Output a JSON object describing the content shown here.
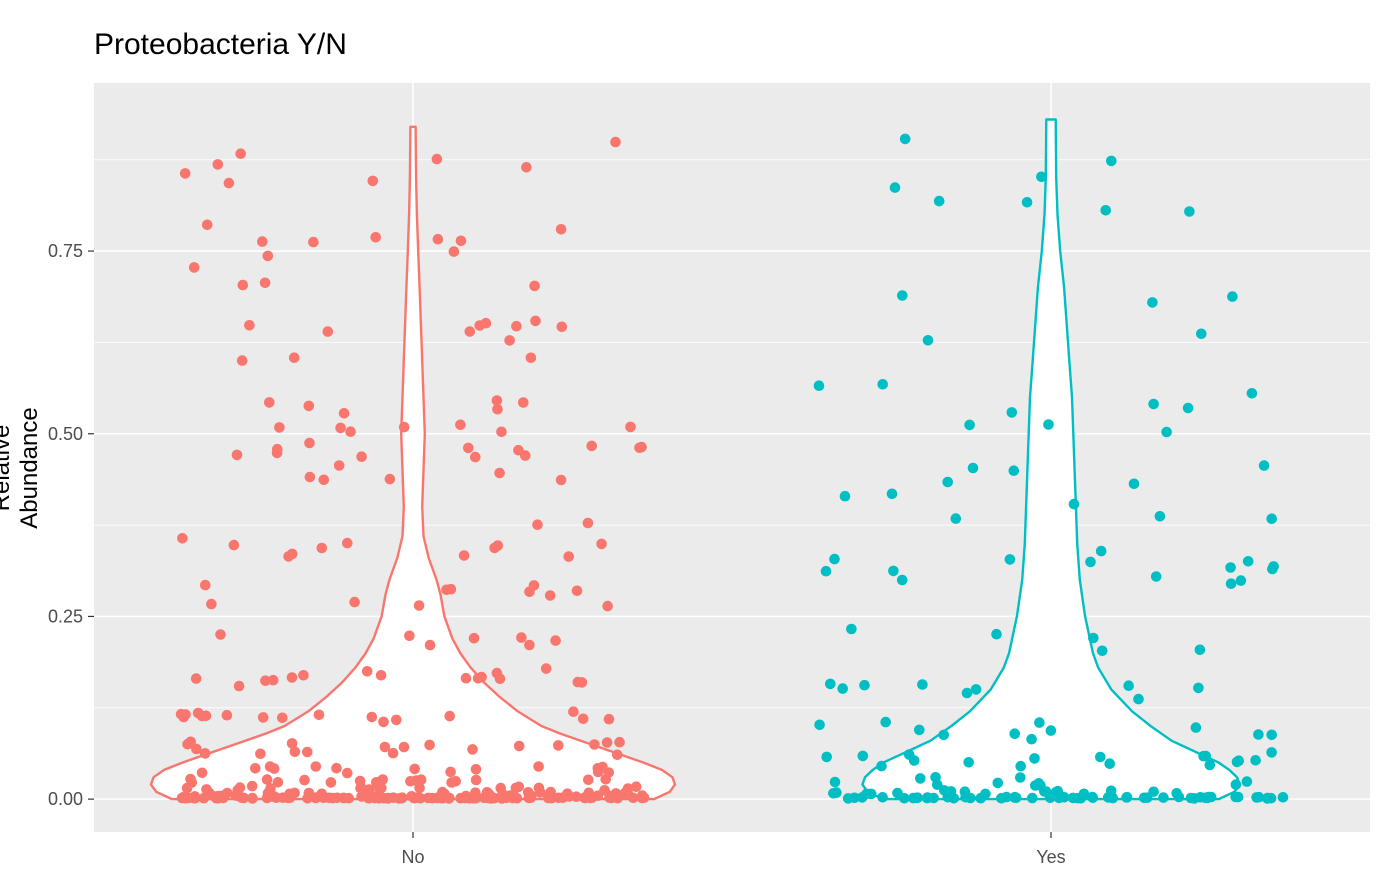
{
  "chart_data": {
    "type": "violin",
    "title": "Proteobacteria Y/N",
    "xlabel": "",
    "ylabel": "Relative Abundance",
    "categories": [
      "No",
      "Yes"
    ],
    "y_ticks": [
      "0.00",
      "0.25",
      "0.50",
      "0.75"
    ],
    "ylim": [
      -0.045,
      0.98
    ],
    "grid": true,
    "legend": "none",
    "background_color": "#ebebeb",
    "series": [
      {
        "category": "No",
        "color": "#f8766d",
        "density": [
          [
            0.0,
            0.92
          ],
          [
            0.01,
            0.98
          ],
          [
            0.02,
            1.0
          ],
          [
            0.03,
            0.99
          ],
          [
            0.04,
            0.95
          ],
          [
            0.05,
            0.88
          ],
          [
            0.06,
            0.8
          ],
          [
            0.07,
            0.72
          ],
          [
            0.08,
            0.64
          ],
          [
            0.09,
            0.56
          ],
          [
            0.1,
            0.49
          ],
          [
            0.12,
            0.4
          ],
          [
            0.14,
            0.33
          ],
          [
            0.16,
            0.27
          ],
          [
            0.18,
            0.22
          ],
          [
            0.2,
            0.18
          ],
          [
            0.22,
            0.15
          ],
          [
            0.25,
            0.12
          ],
          [
            0.28,
            0.105
          ],
          [
            0.3,
            0.09
          ],
          [
            0.33,
            0.06
          ],
          [
            0.36,
            0.04
          ],
          [
            0.4,
            0.035
          ],
          [
            0.45,
            0.04
          ],
          [
            0.5,
            0.045
          ],
          [
            0.55,
            0.04
          ],
          [
            0.6,
            0.035
          ],
          [
            0.65,
            0.03
          ],
          [
            0.7,
            0.025
          ],
          [
            0.75,
            0.02
          ],
          [
            0.8,
            0.015
          ],
          [
            0.85,
            0.012
          ],
          [
            0.92,
            0.01
          ]
        ],
        "points": [
          [
            0.001,
            0.002
          ],
          [
            0.003,
            0.005
          ],
          [
            0.007,
            0.01
          ],
          [
            0.012,
            0.018
          ],
          [
            0.022,
            0.028
          ],
          [
            0.035,
            0.045
          ],
          [
            0.06,
            0.08
          ],
          [
            0.1,
            0.12
          ],
          [
            0.15,
            0.18
          ],
          [
            0.2,
            0.23
          ],
          [
            0.26,
            0.3
          ],
          [
            0.33,
            0.38
          ],
          [
            0.43,
            0.49
          ],
          [
            0.5,
            0.55
          ],
          [
            0.6,
            0.67
          ],
          [
            0.7,
            0.79
          ],
          [
            0.84,
            0.92
          ]
        ]
      },
      {
        "category": "Yes",
        "color": "#00bfc4",
        "density": [
          [
            0.0,
            0.64
          ],
          [
            0.01,
            0.7
          ],
          [
            0.02,
            0.72
          ],
          [
            0.03,
            0.71
          ],
          [
            0.04,
            0.68
          ],
          [
            0.05,
            0.64
          ],
          [
            0.06,
            0.58
          ],
          [
            0.07,
            0.52
          ],
          [
            0.08,
            0.46
          ],
          [
            0.1,
            0.38
          ],
          [
            0.12,
            0.31
          ],
          [
            0.15,
            0.23
          ],
          [
            0.18,
            0.18
          ],
          [
            0.2,
            0.16
          ],
          [
            0.25,
            0.13
          ],
          [
            0.3,
            0.11
          ],
          [
            0.35,
            0.1
          ],
          [
            0.4,
            0.095
          ],
          [
            0.45,
            0.09
          ],
          [
            0.5,
            0.085
          ],
          [
            0.55,
            0.08
          ],
          [
            0.6,
            0.07
          ],
          [
            0.65,
            0.06
          ],
          [
            0.7,
            0.05
          ],
          [
            0.75,
            0.035
          ],
          [
            0.8,
            0.025
          ],
          [
            0.85,
            0.02
          ],
          [
            0.93,
            0.018
          ]
        ],
        "points": [
          [
            0.001,
            0.003
          ],
          [
            0.006,
            0.012
          ],
          [
            0.018,
            0.03
          ],
          [
            0.045,
            0.065
          ],
          [
            0.08,
            0.11
          ],
          [
            0.13,
            0.16
          ],
          [
            0.2,
            0.24
          ],
          [
            0.29,
            0.34
          ],
          [
            0.37,
            0.46
          ],
          [
            0.5,
            0.59
          ],
          [
            0.62,
            0.7
          ],
          [
            0.79,
            0.93
          ]
        ]
      }
    ]
  }
}
